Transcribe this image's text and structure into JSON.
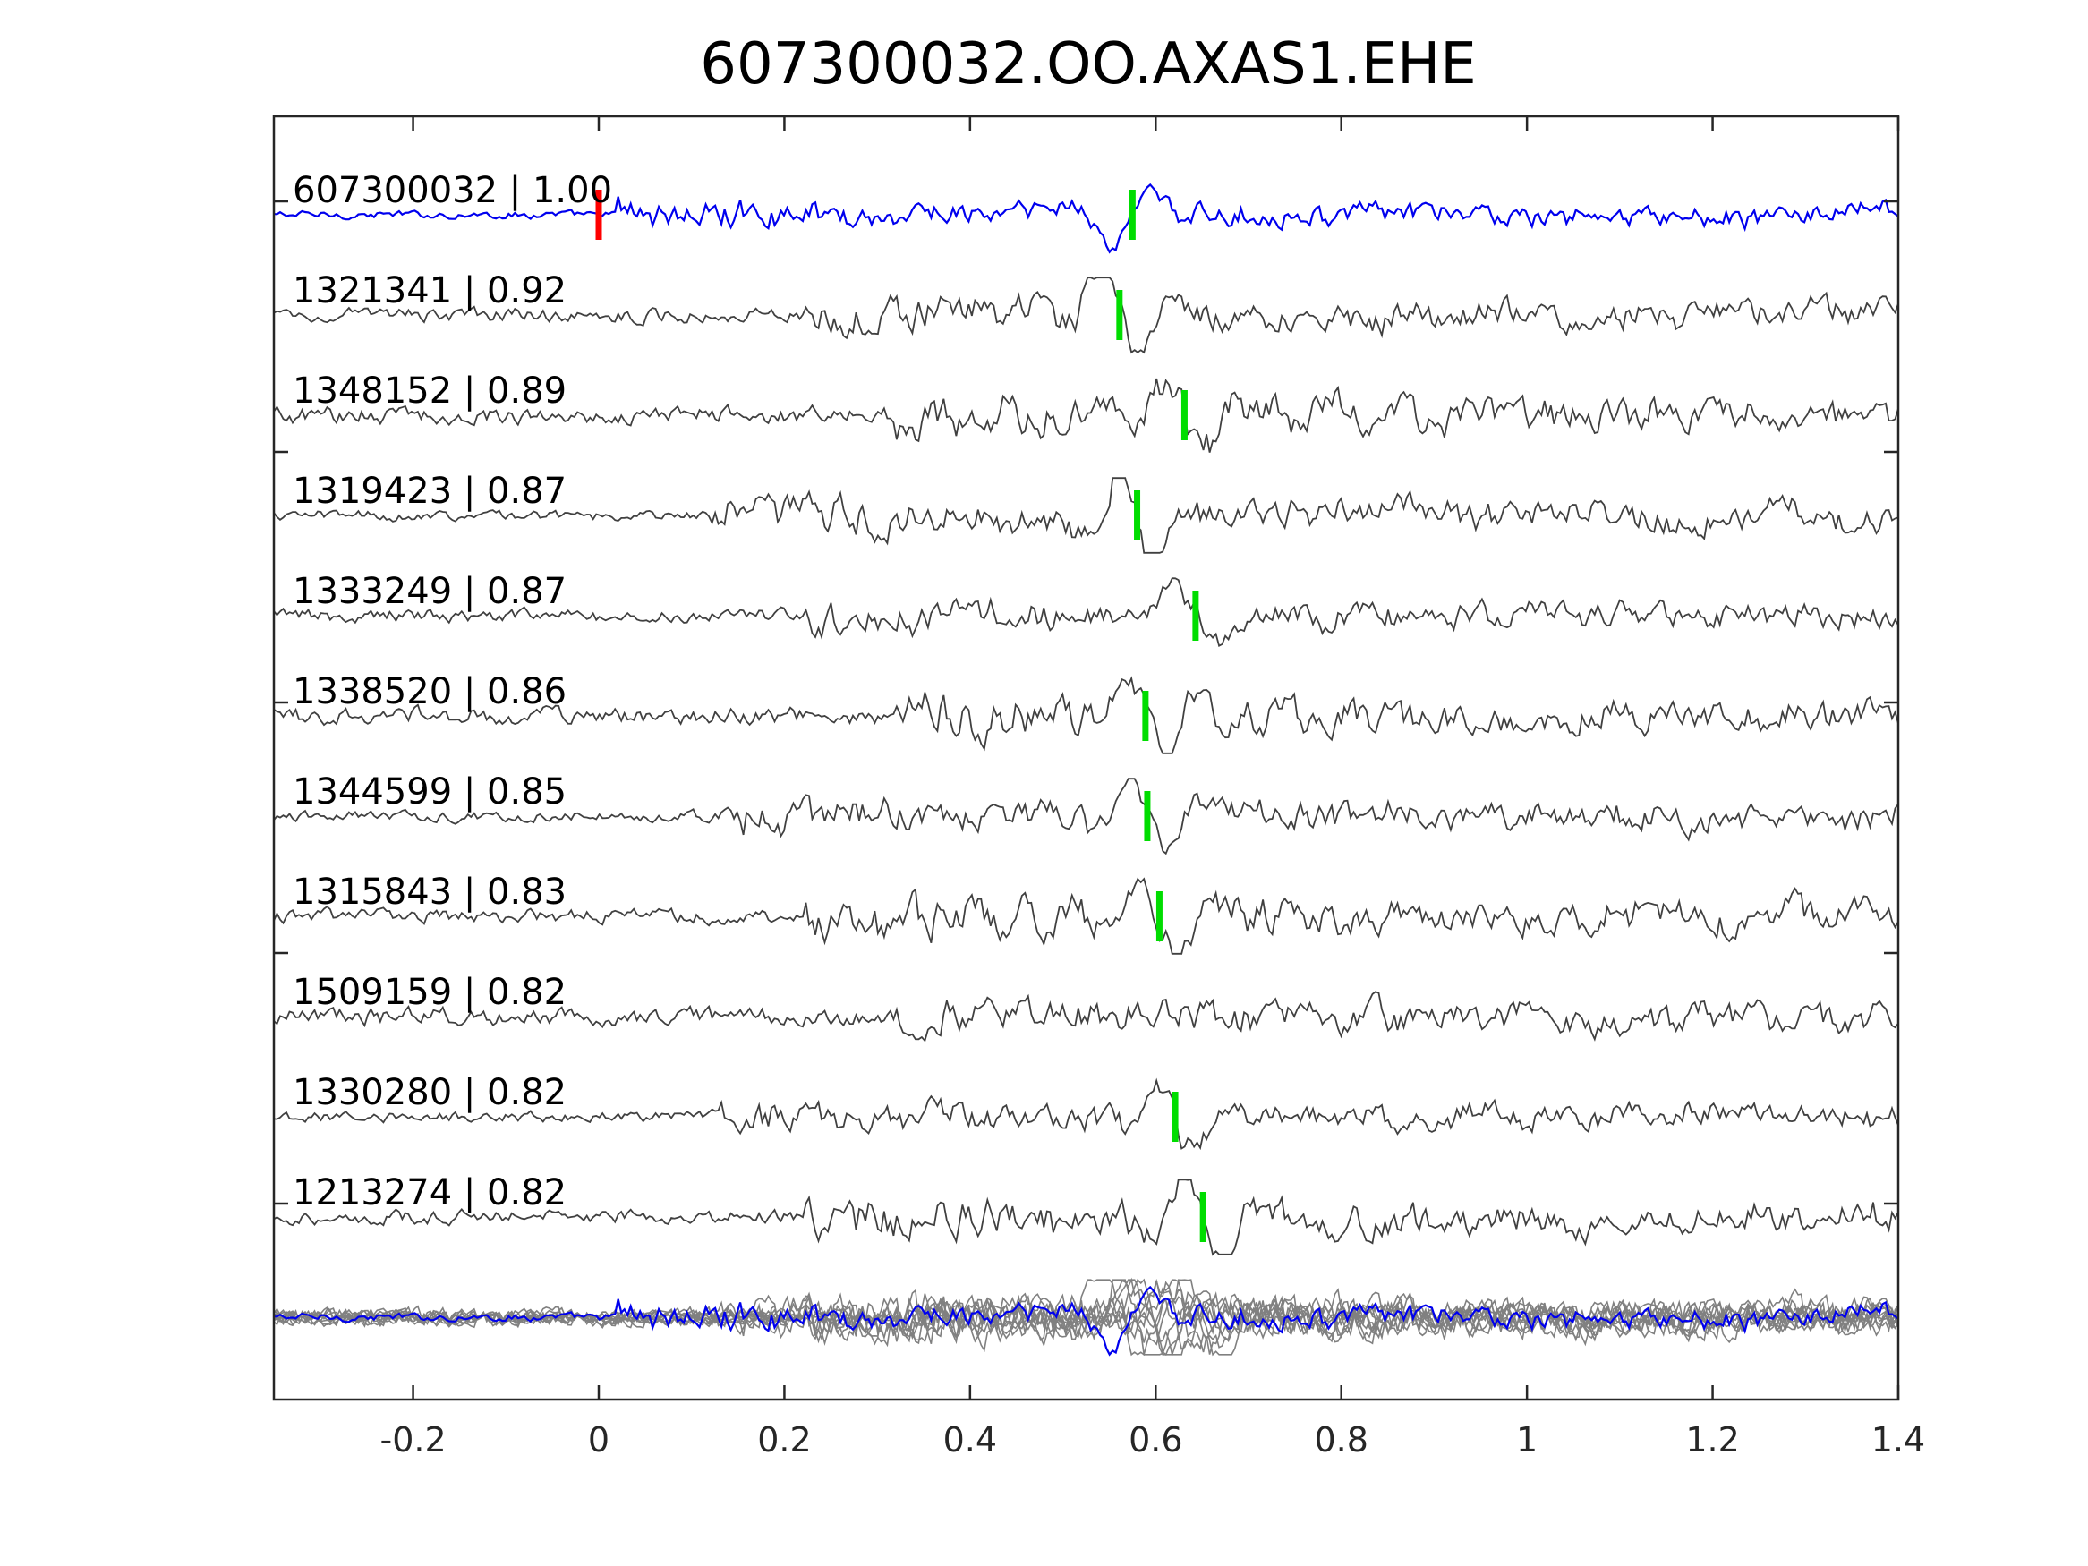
{
  "chart_data": {
    "type": "line",
    "title": "607300032.OO.AXAS1.EHE",
    "xlabel": "",
    "ylabel": "",
    "xlim": [
      -0.35,
      1.4
    ],
    "x_ticks": [
      -0.2,
      0,
      0.2,
      0.4,
      0.6,
      0.8,
      1,
      1.2,
      1.4
    ],
    "x_tick_labels": [
      "-0.2",
      "0",
      "0.2",
      "0.4",
      "0.6",
      "0.8",
      "1",
      "1.2",
      "1.4"
    ],
    "grid": false,
    "legend": "none",
    "colors": {
      "template": "#0000ee",
      "match": "#404040",
      "overlay": "#808080",
      "template_pick": "#ff0000",
      "match_pick": "#00dd00"
    },
    "reference_pick_time": 0.0,
    "series": [
      {
        "label": "607300032 | 1.00",
        "pick_time": 0.575,
        "style": "template"
      },
      {
        "label": "1321341 | 0.92",
        "pick_time": 0.561
      },
      {
        "label": "1348152 | 0.89",
        "pick_time": 0.631
      },
      {
        "label": "1319423 | 0.87",
        "pick_time": 0.58
      },
      {
        "label": "1333249 | 0.87",
        "pick_time": 0.643
      },
      {
        "label": "1338520 | 0.86",
        "pick_time": 0.589
      },
      {
        "label": "1344599 | 0.85",
        "pick_time": 0.591
      },
      {
        "label": "1315843 | 0.83",
        "pick_time": 0.604
      },
      {
        "label": "1509159 | 0.82",
        "pick_time": null
      },
      {
        "label": "1330280 | 0.82",
        "pick_time": 0.621
      },
      {
        "label": "1213274 | 0.82",
        "pick_time": 0.651
      }
    ],
    "overlay_label": ""
  }
}
